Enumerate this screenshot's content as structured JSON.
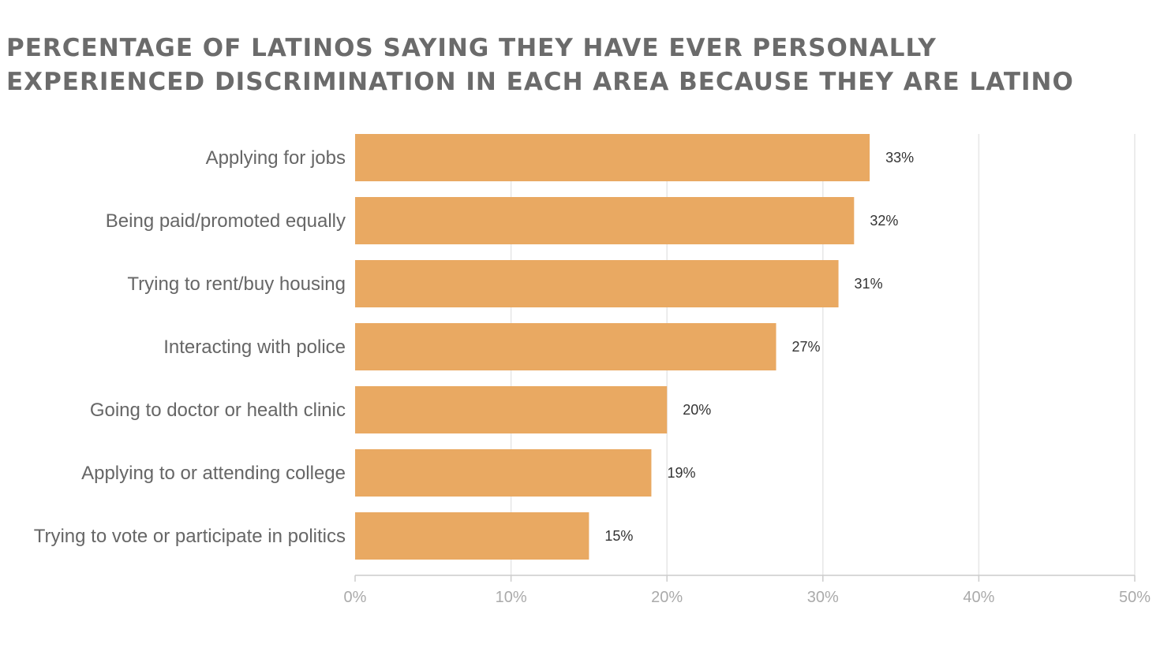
{
  "chart_data": {
    "type": "bar",
    "orientation": "horizontal",
    "title": "PERCENTAGE OF LATINOS SAYING THEY HAVE EVER PERSONALLY EXPERIENCED DISCRIMINATION IN EACH AREA BECAUSE THEY ARE LATINO",
    "categories": [
      "Applying for jobs",
      "Being paid/promoted equally",
      "Trying to rent/buy housing",
      "Interacting with police",
      "Going to doctor or health clinic",
      "Applying to or attending college",
      "Trying to vote or participate in politics"
    ],
    "values": [
      33,
      32,
      31,
      27,
      20,
      19,
      15
    ],
    "value_labels": [
      "33%",
      "32%",
      "31%",
      "27%",
      "20%",
      "19%",
      "15%"
    ],
    "xlim": [
      0,
      50
    ],
    "x_ticks": [
      0,
      10,
      20,
      30,
      40,
      50
    ],
    "x_tick_labels": [
      "0%",
      "10%",
      "20%",
      "30%",
      "40%",
      "50%"
    ],
    "xlabel": "",
    "ylabel": "",
    "grid": "vertical",
    "bar_color": "#e9a962",
    "grid_color": "#e6e6e6",
    "axis_color": "#cccccc"
  }
}
